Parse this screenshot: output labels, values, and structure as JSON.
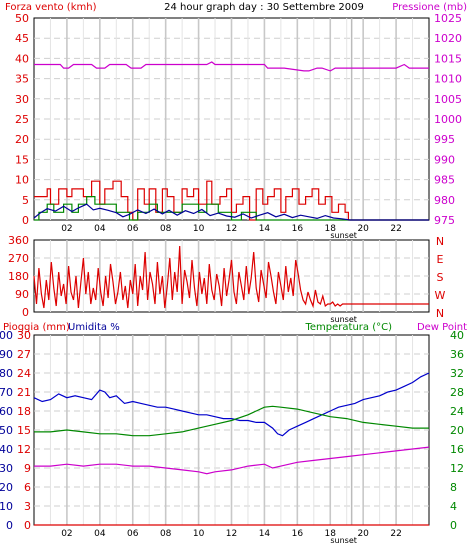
{
  "chart_data": [
    {
      "type": "line",
      "title": "24 hour graph day : 30 Settembre 2009",
      "left_axis_label": "Forza vento (kmh)",
      "right_axis_label": "Pressione (mb)",
      "left_axis": {
        "ylim": [
          0,
          50
        ],
        "ticks": [
          "0",
          "5",
          "10",
          "15",
          "20",
          "25",
          "30",
          "35",
          "40",
          "45",
          "50"
        ]
      },
      "right_axis": {
        "ylim": [
          975,
          1025
        ],
        "ticks": [
          "975",
          "980",
          "985",
          "990",
          "995",
          "1000",
          "1005",
          "1010",
          "1015",
          "1020",
          "1025"
        ]
      },
      "x_ticks": [
        "02",
        "04",
        "06",
        "08",
        "10",
        "12",
        "14",
        "16",
        "18",
        "20",
        "22"
      ],
      "x_range_hours": [
        0,
        24
      ],
      "sunset_label": "sunset",
      "grid": true,
      "series": [
        {
          "axis": "right",
          "color": "#cc00cc",
          "x": [
            0,
            1.6,
            1.8,
            2.1,
            2.4,
            3.5,
            3.8,
            4.3,
            4.6,
            5.6,
            5.9,
            6.5,
            6.8,
            10.5,
            10.8,
            11,
            14,
            14.2,
            15.2,
            16.4,
            16.7,
            17.2,
            17.5,
            18,
            18.3,
            19,
            20,
            21,
            22,
            22.5,
            22.8,
            23.5,
            24
          ],
          "y": [
            1013.5,
            1013.5,
            1012.6,
            1012.6,
            1013.5,
            1013.5,
            1012.6,
            1012.6,
            1013.5,
            1013.5,
            1012.6,
            1012.6,
            1013.5,
            1013.5,
            1014.1,
            1013.5,
            1013.5,
            1012.6,
            1012.6,
            1011.9,
            1011.9,
            1012.6,
            1012.6,
            1011.9,
            1012.6,
            1012.6,
            1012.6,
            1012.6,
            1012.6,
            1013.5,
            1012.6,
            1012.6,
            1012.6
          ]
        },
        {
          "axis": "left",
          "color": "#dd0000",
          "step": true,
          "x": [
            0,
            0.3,
            0.8,
            1.0,
            1.5,
            2.0,
            2.3,
            3.0,
            3.5,
            4.0,
            4.3,
            4.8,
            5.3,
            5.7,
            6.0,
            6.3,
            6.7,
            7.0,
            7.4,
            7.8,
            8.1,
            8.5,
            9.0,
            9.3,
            9.7,
            10.0,
            10.5,
            10.8,
            11.3,
            11.7,
            12.0,
            12.3,
            12.7,
            13.1,
            13.5,
            13.9,
            14.2,
            14.6,
            15.0,
            15.3,
            15.7,
            16.1,
            16.5,
            16.9,
            17.3,
            17.7,
            18.1,
            18.5,
            18.9,
            19.1,
            24
          ],
          "y": [
            5.8,
            5.8,
            7.7,
            3.9,
            7.7,
            5.8,
            7.7,
            5.8,
            9.6,
            3.9,
            7.7,
            9.6,
            5.8,
            1.9,
            0,
            7.7,
            3.9,
            7.7,
            1.9,
            7.7,
            5.8,
            1.9,
            7.7,
            5.8,
            7.7,
            3.9,
            9.6,
            3.9,
            5.8,
            7.7,
            1.9,
            3.9,
            5.8,
            0,
            7.7,
            3.9,
            5.8,
            7.7,
            1.9,
            5.8,
            7.7,
            3.9,
            5.8,
            7.7,
            3.9,
            5.8,
            1.9,
            3.9,
            1.9,
            0,
            0
          ]
        },
        {
          "axis": "left",
          "color": "#008800",
          "step": true,
          "x": [
            0,
            0.3,
            0.8,
            1.2,
            1.8,
            2.3,
            2.7,
            3.2,
            3.7,
            4.2,
            5.0,
            5.8,
            6.3,
            7.0,
            7.5,
            8.2,
            9.0,
            10.0,
            10.5,
            11.2,
            12.0,
            12.6,
            13.5,
            14.5,
            24
          ],
          "y": [
            0,
            1.9,
            3.9,
            1.9,
            3.9,
            1.9,
            3.9,
            5.8,
            3.9,
            3.9,
            1.9,
            0,
            1.9,
            3.9,
            1.9,
            1.9,
            3.9,
            1.9,
            3.9,
            1.9,
            0,
            1.9,
            0,
            0,
            0
          ]
        },
        {
          "axis": "left",
          "color": "#000099",
          "x": [
            0,
            0.4,
            0.8,
            1.3,
            1.8,
            2.3,
            2.7,
            3.2,
            3.6,
            4.0,
            4.5,
            5.0,
            5.4,
            5.8,
            6.3,
            6.8,
            7.3,
            7.8,
            8.2,
            8.7,
            9.2,
            9.7,
            10.2,
            10.7,
            11.2,
            11.7,
            12.2,
            12.7,
            13.2,
            13.7,
            14.2,
            14.7,
            15.2,
            15.7,
            16.2,
            16.7,
            17.2,
            17.7,
            18.2,
            18.7,
            19.2,
            24
          ],
          "y": [
            0.5,
            1.8,
            2.8,
            2.2,
            3.4,
            2.1,
            3.0,
            3.9,
            2.5,
            2.9,
            2.4,
            1.8,
            0.8,
            1.4,
            2.5,
            1.6,
            2.7,
            1.5,
            2.4,
            1.2,
            2.3,
            1.6,
            2.6,
            1.1,
            1.7,
            1.0,
            0.7,
            1.5,
            0.5,
            1.2,
            1.8,
            0.8,
            1.4,
            0.6,
            1.2,
            0.8,
            0.4,
            1.1,
            0.5,
            0.3,
            0,
            0
          ]
        }
      ]
    },
    {
      "type": "line",
      "left_axis": {
        "ylim": [
          0,
          360
        ],
        "ticks": [
          "0",
          "90",
          "180",
          "270",
          "360"
        ]
      },
      "right_axis_labels": [
        "N",
        "W",
        "S",
        "E",
        "N"
      ],
      "x_ticks": [],
      "x_range_hours": [
        0,
        24
      ],
      "sunset_label": "sunset",
      "grid": true,
      "series": [
        {
          "name": "",
          "color": "#dd0000",
          "x": [
            0,
            0.15,
            0.3,
            0.45,
            0.6,
            0.75,
            0.9,
            1.05,
            1.2,
            1.35,
            1.5,
            1.65,
            1.8,
            1.95,
            2.1,
            2.25,
            2.4,
            2.55,
            2.7,
            2.85,
            3.0,
            3.15,
            3.3,
            3.45,
            3.6,
            3.75,
            3.9,
            4.05,
            4.2,
            4.35,
            4.5,
            4.65,
            4.8,
            4.95,
            5.1,
            5.25,
            5.4,
            5.55,
            5.7,
            5.85,
            6.0,
            6.15,
            6.3,
            6.45,
            6.6,
            6.75,
            6.9,
            7.05,
            7.2,
            7.35,
            7.5,
            7.65,
            7.8,
            7.95,
            8.1,
            8.25,
            8.4,
            8.55,
            8.7,
            8.85,
            9.0,
            9.15,
            9.3,
            9.45,
            9.6,
            9.75,
            9.9,
            10.05,
            10.2,
            10.35,
            10.5,
            10.65,
            10.8,
            10.95,
            11.1,
            11.25,
            11.4,
            11.55,
            11.7,
            11.85,
            12.0,
            12.15,
            12.3,
            12.45,
            12.6,
            12.75,
            12.9,
            13.05,
            13.2,
            13.35,
            13.5,
            13.65,
            13.8,
            13.95,
            14.1,
            14.25,
            14.4,
            14.55,
            14.7,
            14.85,
            15.0,
            15.15,
            15.3,
            15.45,
            15.6,
            15.75,
            15.9,
            16.05,
            16.2,
            16.35,
            16.5,
            16.65,
            16.8,
            16.95,
            17.1,
            17.25,
            17.4,
            17.55,
            17.7,
            17.85,
            18.0,
            18.15,
            18.3,
            18.45,
            18.6,
            18.75,
            18.9,
            19.0,
            24
          ],
          "y": [
            180,
            40,
            220,
            90,
            20,
            160,
            60,
            250,
            120,
            30,
            200,
            80,
            140,
            40,
            230,
            100,
            60,
            180,
            20,
            150,
            270,
            90,
            200,
            40,
            120,
            60,
            220,
            100,
            30,
            180,
            70,
            240,
            150,
            40,
            100,
            200,
            60,
            130,
            20,
            160,
            90,
            240,
            30,
            180,
            110,
            300,
            60,
            200,
            140,
            40,
            250,
            90,
            180,
            20,
            130,
            270,
            60,
            200,
            100,
            330,
            40,
            210,
            150,
            70,
            260,
            120,
            30,
            200,
            90,
            170,
            40,
            240,
            110,
            60,
            190,
            130,
            30,
            220,
            80,
            160,
            260,
            100,
            40,
            200,
            130,
            60,
            230,
            90,
            170,
            300,
            120,
            50,
            210,
            140,
            70,
            250,
            180,
            100,
            40,
            200,
            130,
            60,
            230,
            100,
            170,
            80,
            260,
            190,
            110,
            60,
            40,
            100,
            60,
            30,
            110,
            50,
            40,
            80,
            30,
            40,
            40,
            50,
            30,
            40,
            30,
            40,
            40,
            40,
            40
          ]
        }
      ]
    },
    {
      "type": "line",
      "left_axis_labels": [
        "Pioggia (mm)",
        "Umidita %"
      ],
      "right_axis_label": "Temperatura (°C)",
      "right_axis_label2": "Dew Point",
      "rain_axis": {
        "ylim": [
          0,
          30
        ],
        "ticks": [
          "0",
          "3",
          "6",
          "9",
          "12",
          "15",
          "18",
          "21",
          "24",
          "27",
          "30"
        ]
      },
      "humidity_axis": {
        "ylim": [
          0,
          100
        ],
        "ticks": [
          "0",
          "10",
          "20",
          "30",
          "40",
          "50",
          "60",
          "70",
          "80",
          "90",
          "100"
        ]
      },
      "temperature_axis": {
        "ylim": [
          0,
          40
        ],
        "ticks": [
          "0",
          "4",
          "8",
          "12",
          "16",
          "20",
          "24",
          "28",
          "32",
          "36",
          "40"
        ]
      },
      "x_ticks": [
        "02",
        "04",
        "06",
        "08",
        "10",
        "12",
        "14",
        "16",
        "18",
        "20",
        "22"
      ],
      "x_range_hours": [
        0,
        24
      ],
      "sunset_label": "sunset",
      "grid": true,
      "series": [
        {
          "axis": "humidity",
          "color": "#0000cc",
          "x": [
            0,
            0.5,
            1.0,
            1.5,
            2.0,
            2.5,
            3.0,
            3.5,
            4.0,
            4.3,
            4.6,
            5.0,
            5.5,
            6.0,
            6.5,
            7.0,
            7.5,
            8.0,
            8.5,
            9.0,
            9.5,
            10.0,
            10.5,
            11.0,
            11.5,
            12.0,
            12.5,
            13.0,
            13.5,
            14.0,
            14.5,
            14.8,
            15.1,
            15.5,
            16.0,
            16.5,
            17.0,
            17.5,
            18.0,
            18.5,
            19.0,
            19.5,
            20.0,
            20.5,
            21.0,
            21.5,
            22.0,
            22.5,
            23.0,
            23.5,
            24.0
          ],
          "y": [
            67,
            65,
            66,
            69,
            67,
            68,
            67,
            66,
            71,
            70,
            67,
            68,
            64,
            65,
            64,
            63,
            62,
            62,
            61,
            60,
            59,
            58,
            58,
            57,
            56,
            56,
            55,
            55,
            54,
            54,
            51,
            48,
            47,
            50,
            52,
            54,
            56,
            58,
            60,
            62,
            63,
            64,
            66,
            67,
            68,
            70,
            71,
            73,
            75,
            78,
            80
          ]
        },
        {
          "axis": "temperature",
          "color": "#008800",
          "x": [
            0,
            1,
            2,
            3,
            4,
            5,
            6,
            7,
            8,
            9,
            10,
            11,
            12,
            13,
            13.5,
            14,
            14.5,
            15,
            16,
            17,
            18,
            19,
            20,
            21,
            22,
            23,
            24
          ],
          "y": [
            19.6,
            19.6,
            20,
            19.6,
            19.2,
            19.2,
            18.8,
            18.8,
            19.2,
            19.6,
            20.4,
            21.2,
            22,
            23.2,
            24,
            24.8,
            25,
            24.8,
            24.4,
            23.6,
            22.8,
            22.4,
            21.6,
            21.2,
            20.8,
            20.4,
            20.4
          ]
        },
        {
          "axis": "temperature",
          "color": "#cc00cc",
          "x": [
            0,
            1,
            2,
            3,
            4,
            5,
            6,
            7,
            8,
            9,
            10,
            10.5,
            11,
            12,
            13,
            14,
            14.5,
            15,
            16,
            17,
            18,
            19,
            20,
            21,
            22,
            23,
            24
          ],
          "y": [
            12.4,
            12.4,
            12.8,
            12.4,
            12.8,
            12.8,
            12.4,
            12.4,
            12,
            11.6,
            11.2,
            10.8,
            11.2,
            11.6,
            12.4,
            12.8,
            12,
            12.4,
            13.2,
            13.6,
            14,
            14.4,
            14.8,
            15.2,
            15.6,
            16,
            16.4
          ]
        },
        {
          "axis": "rain",
          "color": "#dd0000",
          "x": [
            0,
            24
          ],
          "y": [
            0,
            0
          ]
        }
      ]
    }
  ]
}
